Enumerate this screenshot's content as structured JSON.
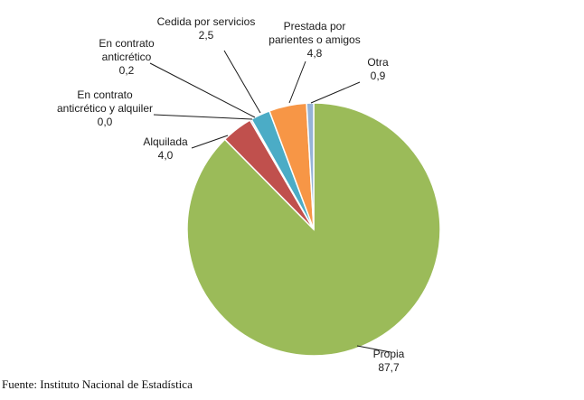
{
  "chart_data": {
    "type": "pie",
    "title": "",
    "slices": [
      {
        "label": [
          "Propia"
        ],
        "value_text": "87,7",
        "value": 87.7,
        "color": "#9bbb59"
      },
      {
        "label": [
          "Alquilada"
        ],
        "value_text": "4,0",
        "value": 4.0,
        "color": "#c0504d"
      },
      {
        "label": [
          "En contrato",
          "anticrético y alquiler"
        ],
        "value_text": "0,0",
        "value": 0.0,
        "color": "#4f81bd"
      },
      {
        "label": [
          "En contrato",
          "anticrético"
        ],
        "value_text": "0,2",
        "value": 0.2,
        "color": "#8064a2"
      },
      {
        "label": [
          "Cedida por servicios"
        ],
        "value_text": "2,5",
        "value": 2.5,
        "color": "#4bacc6"
      },
      {
        "label": [
          "Prestada por",
          "parientes o amigos"
        ],
        "value_text": "4,8",
        "value": 4.8,
        "color": "#f79646"
      },
      {
        "label": [
          "Otra"
        ],
        "value_text": "0,9",
        "value": 0.9,
        "color": "#95b3d7"
      }
    ]
  },
  "source_note": "Fuente: Instituto Nacional de Estadística"
}
